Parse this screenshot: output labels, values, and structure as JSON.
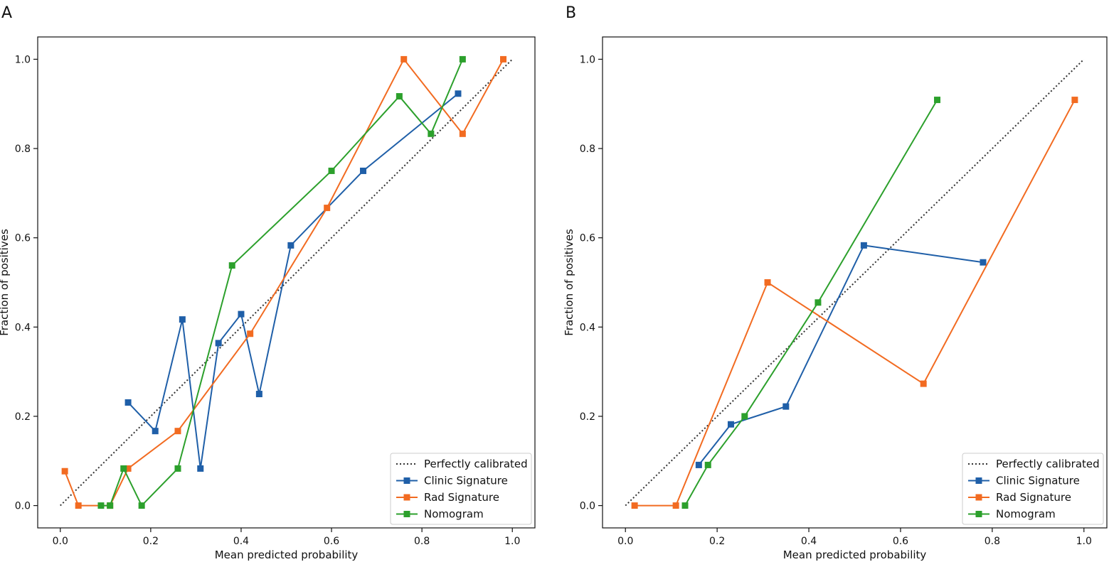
{
  "colors": {
    "clinic": "#1f5fa8",
    "rad": "#f26b21",
    "nomogram": "#2ca02c",
    "diagonal": "#333333",
    "axis": "#111111",
    "legend_border": "#cccccc"
  },
  "chart_data": [
    {
      "type": "line",
      "panel_label": "A",
      "xlabel": "Mean predicted probability",
      "ylabel": "Fraction of positives",
      "xlim": [
        -0.05,
        1.05
      ],
      "ylim": [
        -0.05,
        1.05
      ],
      "xticks": [
        "0.0",
        "0.2",
        "0.4",
        "0.6",
        "0.8",
        "1.0"
      ],
      "yticks": [
        "0.0",
        "0.2",
        "0.4",
        "0.6",
        "0.8",
        "1.0"
      ],
      "legend_position": "lower-right",
      "legend": [
        "Perfectly calibrated",
        "Clinic Signature",
        "Rad Signature",
        "Nomogram"
      ],
      "reference": {
        "name": "Perfectly calibrated",
        "x": [
          0,
          1
        ],
        "y": [
          0,
          1
        ]
      },
      "series": [
        {
          "name": "Clinic Signature",
          "color_key": "clinic",
          "x": [
            0.15,
            0.21,
            0.27,
            0.31,
            0.35,
            0.4,
            0.44,
            0.51,
            0.67,
            0.88
          ],
          "y": [
            0.231,
            0.167,
            0.417,
            0.083,
            0.364,
            0.429,
            0.25,
            0.583,
            0.75,
            0.923
          ]
        },
        {
          "name": "Rad Signature",
          "color_key": "rad",
          "x": [
            0.01,
            0.04,
            0.11,
            0.15,
            0.26,
            0.42,
            0.59,
            0.76,
            0.89,
            0.98
          ],
          "y": [
            0.077,
            0.0,
            0.0,
            0.083,
            0.167,
            0.385,
            0.667,
            1.0,
            0.833,
            1.0
          ]
        },
        {
          "name": "Nomogram",
          "color_key": "nomogram",
          "x": [
            0.09,
            0.11,
            0.14,
            0.18,
            0.26,
            0.38,
            0.6,
            0.75,
            0.82,
            0.89
          ],
          "y": [
            0.0,
            0.0,
            0.083,
            0.0,
            0.083,
            0.538,
            0.75,
            0.917,
            0.833,
            1.0
          ]
        }
      ]
    },
    {
      "type": "line",
      "panel_label": "B",
      "xlabel": "Mean predicted probability",
      "ylabel": "Fraction of positives",
      "xlim": [
        -0.05,
        1.05
      ],
      "ylim": [
        -0.05,
        1.05
      ],
      "xticks": [
        "0.0",
        "0.2",
        "0.4",
        "0.6",
        "0.8",
        "1.0"
      ],
      "yticks": [
        "0.0",
        "0.2",
        "0.4",
        "0.6",
        "0.8",
        "1.0"
      ],
      "legend_position": "lower-right",
      "legend": [
        "Perfectly calibrated",
        "Clinic Signature",
        "Rad Signature",
        "Nomogram"
      ],
      "reference": {
        "name": "Perfectly calibrated",
        "x": [
          0,
          1
        ],
        "y": [
          0,
          1
        ]
      },
      "series": [
        {
          "name": "Clinic Signature",
          "color_key": "clinic",
          "x": [
            0.16,
            0.23,
            0.35,
            0.52,
            0.78
          ],
          "y": [
            0.091,
            0.182,
            0.222,
            0.583,
            0.545
          ]
        },
        {
          "name": "Rad Signature",
          "color_key": "rad",
          "x": [
            0.02,
            0.11,
            0.31,
            0.65,
            0.98
          ],
          "y": [
            0.0,
            0.0,
            0.5,
            0.273,
            0.909
          ]
        },
        {
          "name": "Nomogram",
          "color_key": "nomogram",
          "x": [
            0.13,
            0.18,
            0.26,
            0.42,
            0.68
          ],
          "y": [
            0.0,
            0.091,
            0.2,
            0.455,
            0.909
          ]
        }
      ]
    }
  ]
}
